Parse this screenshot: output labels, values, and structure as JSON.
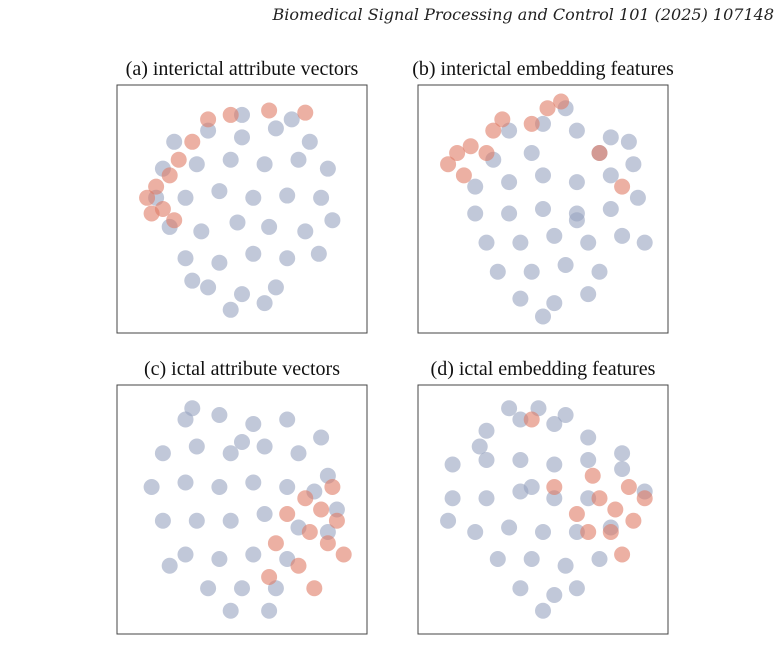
{
  "header": {
    "journal": "Biomedical Signal Processing and Control 101 (2025) 107148"
  },
  "chart_data": [
    {
      "type": "scatter",
      "title": "(a) interictal attribute vectors",
      "xlim": [
        0,
        100
      ],
      "ylim": [
        0,
        100
      ],
      "series": [
        {
          "color": "#98a3c0",
          "x": [
            20,
            35,
            50,
            65,
            80,
            15,
            30,
            45,
            60,
            75,
            88,
            12,
            25,
            40,
            55,
            70,
            85,
            18,
            32,
            48,
            62,
            78,
            90,
            25,
            40,
            55,
            70,
            84,
            35,
            50,
            65,
            45,
            60,
            50,
            72,
            28
          ],
          "values": [
            80,
            85,
            82,
            86,
            80,
            68,
            70,
            72,
            70,
            72,
            68,
            55,
            55,
            58,
            55,
            56,
            55,
            42,
            40,
            44,
            42,
            40,
            45,
            28,
            26,
            30,
            28,
            30,
            15,
            12,
            15,
            5,
            8,
            92,
            90,
            18
          ]
        },
        {
          "color": "#e07b65",
          "x": [
            8,
            12,
            18,
            10,
            22,
            28,
            35,
            45,
            62,
            78,
            15,
            20
          ],
          "values": [
            55,
            60,
            65,
            48,
            72,
            80,
            90,
            92,
            94,
            93,
            50,
            45
          ]
        }
      ]
    },
    {
      "type": "scatter",
      "title": "(b) interictal embedding features",
      "xlim": [
        0,
        100
      ],
      "ylim": [
        0,
        100
      ],
      "series": [
        {
          "color": "#98a3c0",
          "x": [
            35,
            50,
            65,
            80,
            90,
            20,
            35,
            50,
            65,
            80,
            92,
            20,
            35,
            50,
            65,
            80,
            95,
            25,
            40,
            55,
            70,
            85,
            30,
            45,
            60,
            75,
            40,
            55,
            70,
            50,
            60,
            45,
            28,
            75,
            88,
            65
          ],
          "values": [
            85,
            88,
            85,
            82,
            70,
            60,
            62,
            65,
            62,
            65,
            55,
            48,
            48,
            50,
            48,
            50,
            35,
            35,
            35,
            38,
            35,
            38,
            22,
            22,
            25,
            22,
            10,
            8,
            12,
            2,
            95,
            75,
            72,
            75,
            80,
            45
          ]
        },
        {
          "color": "#e07b65",
          "x": [
            8,
            12,
            18,
            25,
            15,
            28,
            32,
            45,
            52,
            58,
            75,
            85
          ],
          "values": [
            70,
            75,
            78,
            75,
            65,
            85,
            90,
            88,
            95,
            98,
            75,
            60
          ]
        }
      ]
    },
    {
      "type": "scatter",
      "title": "(c) ictal attribute vectors",
      "xlim": [
        0,
        100
      ],
      "ylim": [
        0,
        100
      ],
      "series": [
        {
          "color": "#98a3c0",
          "x": [
            25,
            40,
            55,
            70,
            85,
            15,
            30,
            45,
            60,
            75,
            88,
            10,
            25,
            40,
            55,
            70,
            82,
            15,
            30,
            45,
            60,
            75,
            88,
            25,
            40,
            55,
            70,
            35,
            50,
            65,
            45,
            62,
            28,
            50,
            18,
            92
          ],
          "values": [
            90,
            92,
            88,
            90,
            82,
            75,
            78,
            75,
            78,
            75,
            65,
            60,
            62,
            60,
            62,
            60,
            58,
            45,
            45,
            45,
            48,
            42,
            40,
            30,
            28,
            30,
            28,
            15,
            15,
            15,
            5,
            5,
            95,
            80,
            25,
            50
          ]
        },
        {
          "color": "#e07b65",
          "x": [
            78,
            85,
            92,
            88,
            80,
            95,
            70,
            65,
            62,
            75,
            90,
            82
          ],
          "values": [
            55,
            50,
            45,
            35,
            40,
            30,
            48,
            35,
            20,
            25,
            60,
            15
          ]
        }
      ]
    },
    {
      "type": "scatter",
      "title": "(d) ictal embedding features",
      "xlim": [
        0,
        100
      ],
      "ylim": [
        0,
        100
      ],
      "series": [
        {
          "color": "#98a3c0",
          "x": [
            25,
            40,
            55,
            70,
            85,
            10,
            25,
            40,
            55,
            70,
            85,
            10,
            25,
            40,
            55,
            70,
            20,
            35,
            50,
            65,
            80,
            30,
            45,
            60,
            75,
            40,
            55,
            65,
            35,
            48,
            60,
            22,
            50,
            95,
            8,
            45
          ],
          "values": [
            85,
            90,
            88,
            82,
            75,
            70,
            72,
            72,
            70,
            72,
            68,
            55,
            55,
            58,
            55,
            55,
            40,
            42,
            40,
            40,
            42,
            28,
            28,
            25,
            28,
            15,
            12,
            15,
            95,
            95,
            92,
            78,
            5,
            58,
            45,
            60
          ]
        },
        {
          "color": "#e07b65",
          "x": [
            75,
            82,
            90,
            95,
            80,
            88,
            72,
            70,
            85,
            65,
            55,
            45
          ],
          "values": [
            55,
            50,
            45,
            55,
            40,
            60,
            65,
            40,
            30,
            48,
            60,
            90
          ]
        }
      ]
    }
  ]
}
